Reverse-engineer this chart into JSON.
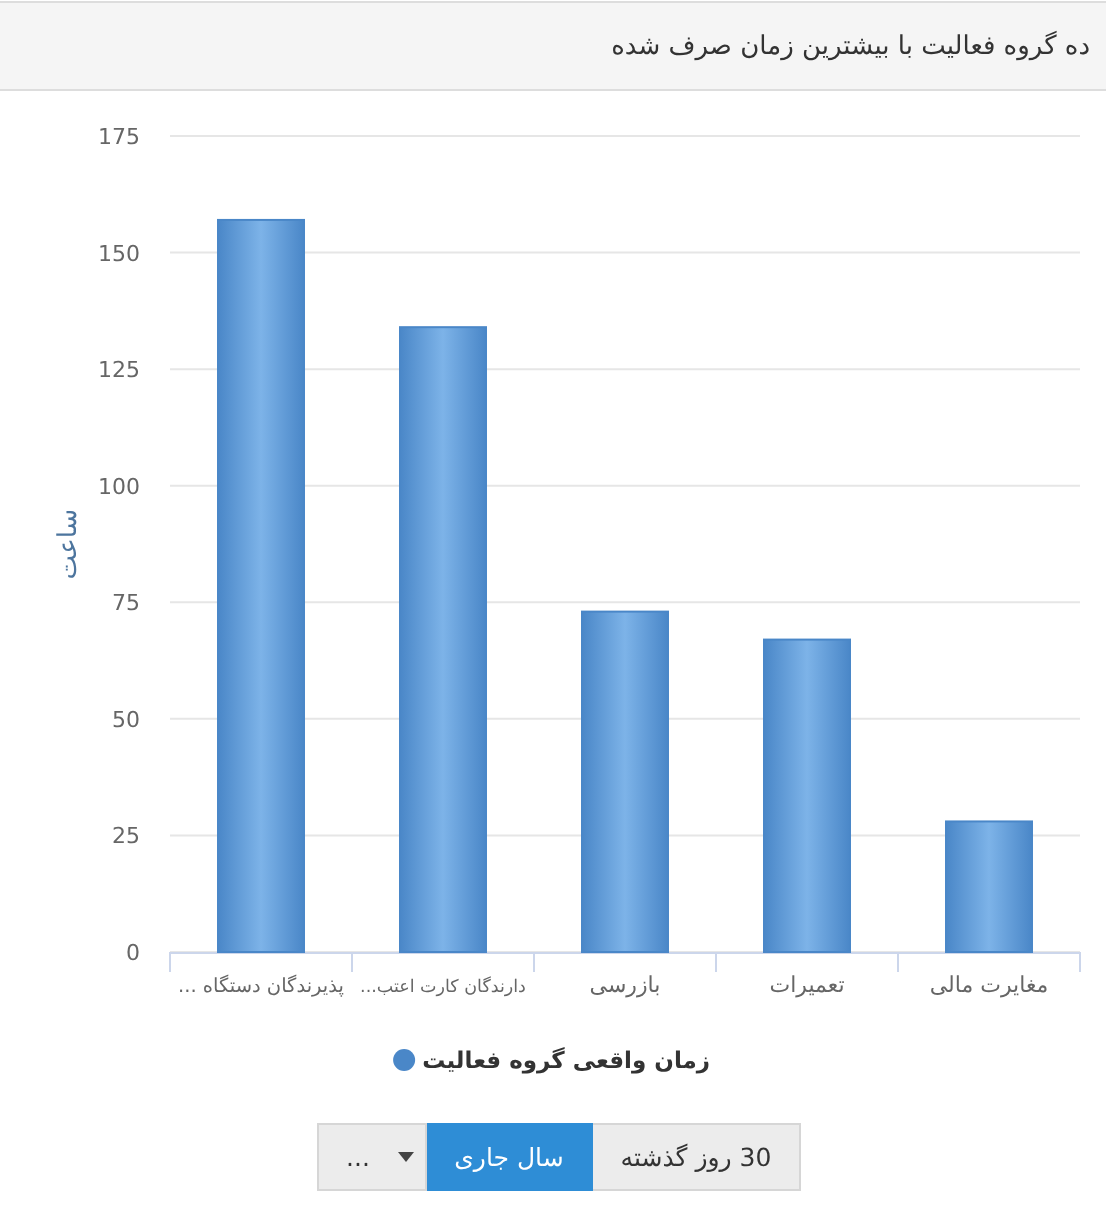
{
  "chart_data": {
    "type": "bar",
    "title": "ده گروه فعالیت با بیشترین زمان صرف شده",
    "ylabel": "ساعت",
    "categories": [
      "پذیرندگان دستگاه ...",
      "دارندگان کارت اعتب...",
      "بازرسی",
      "تعمیرات",
      "مغایرت مالی"
    ],
    "series": [
      {
        "name": "زمان واقعی گروه فعالیت",
        "color": "#4a87c8",
        "values": [
          157,
          134,
          73,
          67,
          28
        ]
      }
    ],
    "ylim": [
      0,
      175
    ],
    "yticks": [
      0,
      25,
      50,
      75,
      100,
      125,
      150,
      175
    ],
    "grid": "y",
    "legend": "bottom",
    "annotations": [
      "30 روز گذشته",
      "سال جاری",
      "..."
    ]
  }
}
